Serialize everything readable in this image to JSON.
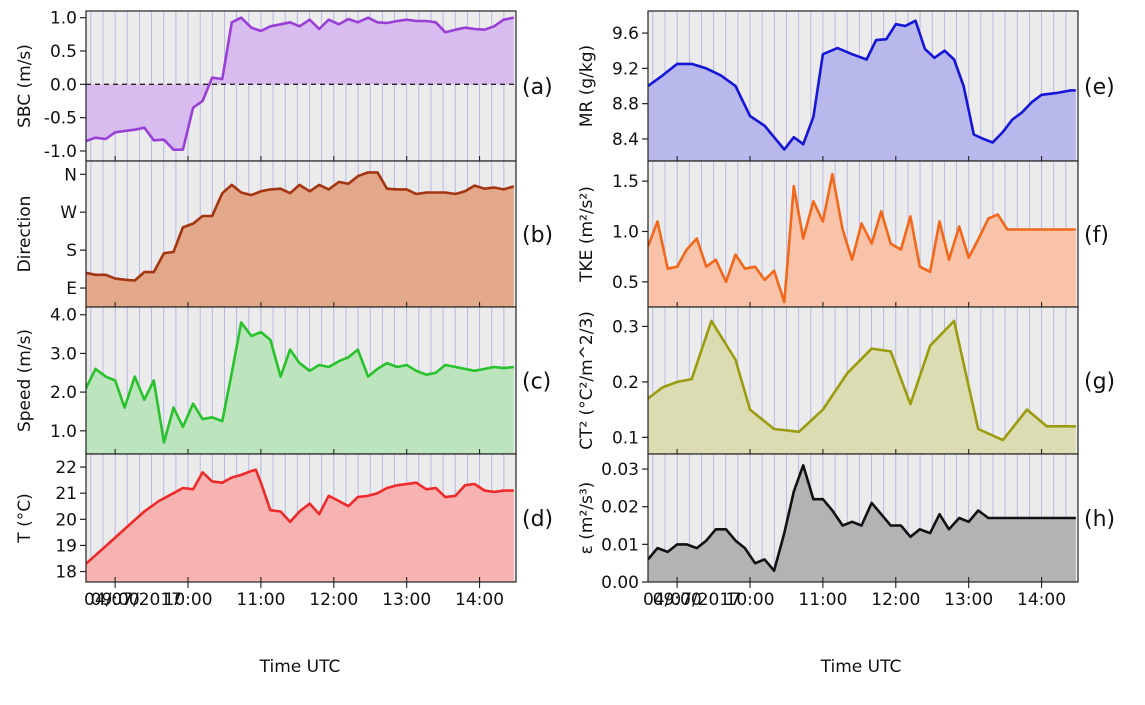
{
  "figure": {
    "date_label": "04/07/2017",
    "xlabel": "Time UTC",
    "x_ticks": [
      "09:00",
      "10:00",
      "11:00",
      "12:00",
      "13:00",
      "14:00"
    ],
    "x_tick_values": [
      9,
      10,
      11,
      12,
      13,
      14
    ],
    "xlim": [
      8.6,
      14.5
    ]
  },
  "chart_data": [
    {
      "panel": "(a)",
      "type": "area",
      "ylabel": "SBC (m/s)",
      "ylim": [
        -1.15,
        1.1
      ],
      "yticks": [
        -1.0,
        -0.5,
        0.0,
        0.5,
        1.0
      ],
      "ytick_labels": [
        "-1.0",
        "-0.5",
        "0.0",
        "0.5",
        "1.0"
      ],
      "zero_line": true,
      "color": "#9a3fd6",
      "fill": "#d9bcef",
      "x": [
        8.6,
        8.73,
        8.87,
        9.0,
        9.13,
        9.27,
        9.4,
        9.53,
        9.67,
        9.8,
        9.93,
        10.07,
        10.2,
        10.33,
        10.47,
        10.6,
        10.73,
        10.87,
        11.0,
        11.13,
        11.27,
        11.4,
        11.53,
        11.67,
        11.8,
        11.93,
        12.07,
        12.2,
        12.33,
        12.47,
        12.6,
        12.73,
        12.87,
        13.0,
        13.13,
        13.27,
        13.4,
        13.53,
        13.67,
        13.8,
        13.93,
        14.07,
        14.2,
        14.33,
        14.47
      ],
      "y": [
        -0.85,
        -0.8,
        -0.82,
        -0.72,
        -0.7,
        -0.68,
        -0.65,
        -0.84,
        -0.83,
        -0.98,
        -0.98,
        -0.35,
        -0.25,
        0.1,
        0.08,
        0.93,
        1.0,
        0.85,
        0.8,
        0.87,
        0.9,
        0.93,
        0.87,
        0.97,
        0.83,
        0.97,
        0.9,
        0.98,
        0.93,
        1.0,
        0.93,
        0.92,
        0.95,
        0.97,
        0.95,
        0.95,
        0.93,
        0.78,
        0.82,
        0.85,
        0.83,
        0.82,
        0.87,
        0.97,
        1.0
      ]
    },
    {
      "panel": "(b)",
      "type": "area",
      "ylabel": "Direction",
      "ylim": [
        0.5,
        4.35
      ],
      "yticks": [
        1,
        2,
        3,
        4
      ],
      "ytick_labels": [
        "E",
        "S",
        "W",
        "N"
      ],
      "zero_line": false,
      "color": "#a33511",
      "fill": "#e3a88a",
      "x": [
        8.6,
        8.73,
        8.87,
        9.0,
        9.13,
        9.27,
        9.4,
        9.53,
        9.67,
        9.8,
        9.93,
        10.07,
        10.2,
        10.33,
        10.47,
        10.6,
        10.73,
        10.87,
        11.0,
        11.13,
        11.27,
        11.4,
        11.53,
        11.67,
        11.8,
        11.93,
        12.07,
        12.2,
        12.33,
        12.47,
        12.6,
        12.73,
        12.87,
        13.0,
        13.13,
        13.27,
        13.4,
        13.53,
        13.67,
        13.8,
        13.93,
        14.07,
        14.2,
        14.33,
        14.47
      ],
      "y": [
        1.4,
        1.35,
        1.35,
        1.25,
        1.22,
        1.2,
        1.42,
        1.42,
        1.92,
        1.95,
        2.6,
        2.7,
        2.9,
        2.9,
        3.5,
        3.72,
        3.52,
        3.45,
        3.55,
        3.6,
        3.62,
        3.5,
        3.72,
        3.55,
        3.72,
        3.6,
        3.8,
        3.75,
        3.95,
        4.05,
        4.05,
        3.62,
        3.6,
        3.6,
        3.48,
        3.52,
        3.52,
        3.52,
        3.48,
        3.55,
        3.7,
        3.62,
        3.65,
        3.6,
        3.68
      ]
    },
    {
      "panel": "(c)",
      "type": "area",
      "ylabel": "Speed (m/s)",
      "ylim": [
        0.4,
        4.2
      ],
      "yticks": [
        1.0,
        2.0,
        3.0,
        4.0
      ],
      "ytick_labels": [
        "1.0",
        "2.0",
        "3.0",
        "4.0"
      ],
      "zero_line": false,
      "color": "#27c22c",
      "fill": "#bde5bd",
      "x": [
        8.6,
        8.73,
        8.87,
        9.0,
        9.13,
        9.27,
        9.4,
        9.53,
        9.67,
        9.8,
        9.93,
        10.07,
        10.2,
        10.33,
        10.47,
        10.6,
        10.73,
        10.87,
        11.0,
        11.13,
        11.27,
        11.4,
        11.53,
        11.67,
        11.8,
        11.93,
        12.07,
        12.2,
        12.33,
        12.47,
        12.6,
        12.73,
        12.87,
        13.0,
        13.13,
        13.27,
        13.4,
        13.53,
        13.67,
        13.8,
        13.93,
        14.07,
        14.2,
        14.33,
        14.47
      ],
      "y": [
        2.1,
        2.6,
        2.4,
        2.3,
        1.6,
        2.4,
        1.8,
        2.3,
        0.7,
        1.6,
        1.1,
        1.7,
        1.3,
        1.35,
        1.25,
        2.5,
        3.8,
        3.45,
        3.55,
        3.35,
        2.4,
        3.1,
        2.75,
        2.55,
        2.7,
        2.65,
        2.8,
        2.9,
        3.1,
        2.4,
        2.6,
        2.75,
        2.65,
        2.7,
        2.55,
        2.45,
        2.5,
        2.7,
        2.65,
        2.6,
        2.55,
        2.6,
        2.65,
        2.62,
        2.65
      ]
    },
    {
      "panel": "(d)",
      "type": "area",
      "ylabel": "T (°C)",
      "ylim": [
        17.6,
        22.5
      ],
      "yticks": [
        18,
        19,
        20,
        21,
        22
      ],
      "ytick_labels": [
        "18",
        "19",
        "20",
        "21",
        "22"
      ],
      "zero_line": false,
      "color": "#ee2a2a",
      "fill": "#f7b2b2",
      "x": [
        8.6,
        8.8,
        9.0,
        9.2,
        9.4,
        9.6,
        9.8,
        9.93,
        10.07,
        10.2,
        10.33,
        10.47,
        10.6,
        10.73,
        10.87,
        10.93,
        11.0,
        11.13,
        11.27,
        11.4,
        11.53,
        11.67,
        11.8,
        11.93,
        12.07,
        12.2,
        12.33,
        12.47,
        12.6,
        12.73,
        12.87,
        13.0,
        13.13,
        13.27,
        13.4,
        13.53,
        13.67,
        13.8,
        13.93,
        14.07,
        14.2,
        14.33,
        14.47
      ],
      "y": [
        18.3,
        18.8,
        19.3,
        19.8,
        20.3,
        20.7,
        21.0,
        21.2,
        21.15,
        21.8,
        21.45,
        21.4,
        21.6,
        21.7,
        21.85,
        21.9,
        21.4,
        20.35,
        20.3,
        19.9,
        20.3,
        20.6,
        20.2,
        20.9,
        20.7,
        20.5,
        20.85,
        20.9,
        21.0,
        21.2,
        21.3,
        21.35,
        21.4,
        21.15,
        21.2,
        20.85,
        20.9,
        21.3,
        21.35,
        21.1,
        21.05,
        21.1,
        21.1
      ]
    },
    {
      "panel": "(e)",
      "type": "area",
      "ylabel": "MR (g/kg)",
      "ylim": [
        8.15,
        9.85
      ],
      "yticks": [
        8.4,
        8.8,
        9.2,
        9.6
      ],
      "ytick_labels": [
        "8.4",
        "8.8",
        "9.2",
        "9.6"
      ],
      "zero_line": false,
      "color": "#1515d8",
      "fill": "#b8b8ec",
      "x": [
        8.6,
        8.8,
        9.0,
        9.2,
        9.4,
        9.6,
        9.8,
        10.0,
        10.2,
        10.33,
        10.47,
        10.6,
        10.73,
        10.87,
        11.0,
        11.2,
        11.4,
        11.6,
        11.73,
        11.87,
        12.0,
        12.13,
        12.27,
        12.4,
        12.53,
        12.67,
        12.8,
        12.93,
        13.07,
        13.2,
        13.33,
        13.47,
        13.6,
        13.73,
        13.87,
        14.0,
        14.2,
        14.4,
        14.47
      ],
      "y": [
        9.0,
        9.12,
        9.25,
        9.25,
        9.2,
        9.12,
        9.0,
        8.66,
        8.55,
        8.42,
        8.28,
        8.42,
        8.34,
        8.65,
        9.36,
        9.43,
        9.36,
        9.3,
        9.52,
        9.53,
        9.7,
        9.68,
        9.74,
        9.42,
        9.32,
        9.4,
        9.3,
        9.0,
        8.45,
        8.4,
        8.36,
        8.48,
        8.62,
        8.7,
        8.82,
        8.9,
        8.92,
        8.95,
        8.95
      ]
    },
    {
      "panel": "(f)",
      "type": "area",
      "ylabel": "TKE (m²/s²)",
      "ylim": [
        0.25,
        1.7
      ],
      "yticks": [
        0.5,
        1.0,
        1.5
      ],
      "ytick_labels": [
        "0.5",
        "1.0",
        "1.5"
      ],
      "zero_line": false,
      "color": "#f2681b",
      "fill": "#f8c3a8",
      "x": [
        8.6,
        8.73,
        8.87,
        9.0,
        9.13,
        9.27,
        9.4,
        9.53,
        9.67,
        9.8,
        9.93,
        10.07,
        10.2,
        10.33,
        10.47,
        10.6,
        10.73,
        10.87,
        11.0,
        11.13,
        11.27,
        11.4,
        11.53,
        11.67,
        11.8,
        11.93,
        12.07,
        12.2,
        12.33,
        12.47,
        12.6,
        12.73,
        12.87,
        13.0,
        13.13,
        13.27,
        13.4,
        13.53,
        13.67,
        13.8,
        13.93,
        14.07,
        14.2,
        14.33,
        14.47
      ],
      "y": [
        0.85,
        1.1,
        0.63,
        0.65,
        0.82,
        0.93,
        0.65,
        0.72,
        0.5,
        0.77,
        0.63,
        0.65,
        0.52,
        0.61,
        0.3,
        1.45,
        0.93,
        1.3,
        1.1,
        1.57,
        1.02,
        0.72,
        1.08,
        0.88,
        1.2,
        0.88,
        0.82,
        1.15,
        0.65,
        0.6,
        1.1,
        0.72,
        1.05,
        0.74,
        0.92,
        1.13,
        1.17,
        1.02,
        1.02,
        1.02,
        1.02,
        1.02,
        1.02,
        1.02,
        1.02
      ]
    },
    {
      "panel": "(g)",
      "type": "area",
      "ylabel": "CT² (°C²/m^2/3)",
      "ylim": [
        0.07,
        0.335
      ],
      "yticks": [
        0.1,
        0.2,
        0.3
      ],
      "ytick_labels": [
        "0.1",
        "0.2",
        "0.3"
      ],
      "zero_line": false,
      "color": "#9b9b0f",
      "fill": "#dcdcb3",
      "x": [
        8.6,
        8.8,
        9.0,
        9.2,
        9.47,
        9.8,
        10.0,
        10.33,
        10.67,
        11.0,
        11.33,
        11.67,
        11.93,
        12.2,
        12.47,
        12.8,
        13.13,
        13.47,
        13.8,
        14.07,
        14.47
      ],
      "y": [
        0.17,
        0.19,
        0.2,
        0.205,
        0.31,
        0.24,
        0.15,
        0.115,
        0.11,
        0.15,
        0.215,
        0.26,
        0.255,
        0.16,
        0.265,
        0.31,
        0.115,
        0.095,
        0.15,
        0.12,
        0.12
      ]
    },
    {
      "panel": "(h)",
      "type": "area",
      "ylabel": "ε (m²/s³)",
      "ylim": [
        0.0,
        0.034
      ],
      "yticks": [
        0.0,
        0.01,
        0.02,
        0.03
      ],
      "ytick_labels": [
        "0.00",
        "0.01",
        "0.02",
        "0.03"
      ],
      "zero_line": false,
      "color": "#111111",
      "fill": "#b3b3b3",
      "x": [
        8.6,
        8.73,
        8.87,
        9.0,
        9.13,
        9.27,
        9.4,
        9.53,
        9.67,
        9.8,
        9.93,
        10.07,
        10.2,
        10.33,
        10.47,
        10.6,
        10.73,
        10.87,
        11.0,
        11.13,
        11.27,
        11.4,
        11.53,
        11.67,
        11.8,
        11.93,
        12.07,
        12.2,
        12.33,
        12.47,
        12.6,
        12.73,
        12.87,
        13.0,
        13.13,
        13.27,
        13.4,
        13.53,
        13.67,
        13.8,
        13.93,
        14.07,
        14.2,
        14.33,
        14.47
      ],
      "y": [
        0.006,
        0.009,
        0.008,
        0.01,
        0.01,
        0.009,
        0.011,
        0.014,
        0.014,
        0.011,
        0.009,
        0.005,
        0.006,
        0.003,
        0.013,
        0.024,
        0.031,
        0.022,
        0.022,
        0.019,
        0.015,
        0.016,
        0.015,
        0.021,
        0.018,
        0.015,
        0.015,
        0.012,
        0.014,
        0.013,
        0.018,
        0.014,
        0.017,
        0.016,
        0.019,
        0.017,
        0.017,
        0.017,
        0.017,
        0.017,
        0.017,
        0.017,
        0.017,
        0.017,
        0.017
      ]
    }
  ]
}
